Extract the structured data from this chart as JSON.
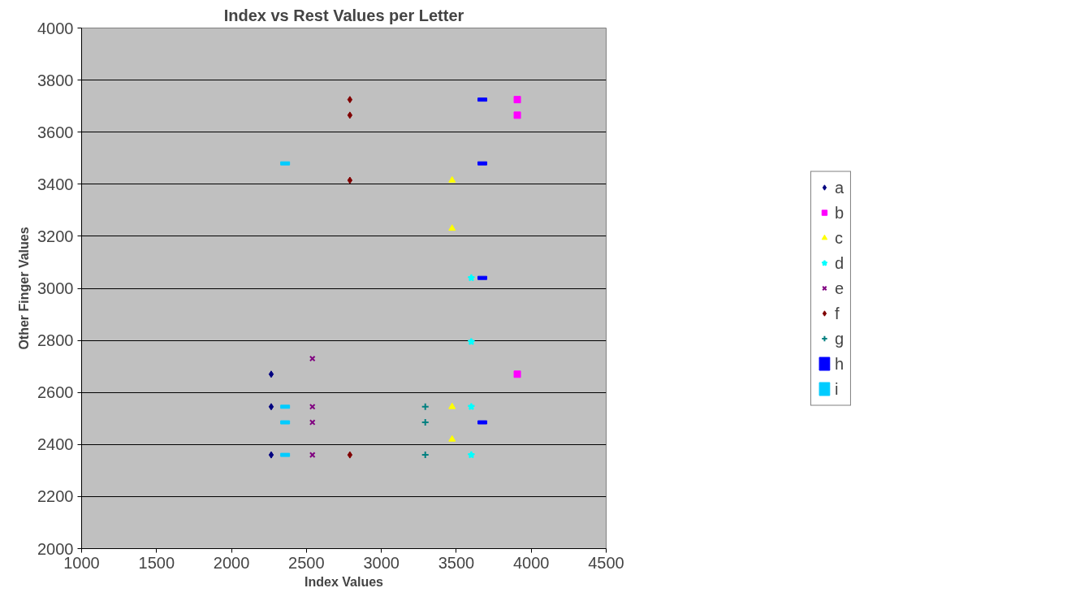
{
  "chart_data": {
    "type": "scatter",
    "title": "Index vs Rest Values per Letter",
    "xlabel": "Index Values",
    "ylabel": "Other Finger Values",
    "xlim": [
      1000,
      4500
    ],
    "xticks": [
      1000,
      1500,
      2000,
      2500,
      3000,
      3500,
      4000,
      4500
    ],
    "ylim": [
      2000,
      4000
    ],
    "yticks": [
      2000,
      2200,
      2400,
      2600,
      2800,
      3000,
      3200,
      3400,
      3600,
      3800,
      4000
    ],
    "grid": "y",
    "legend": "right",
    "series": [
      {
        "name": "a",
        "color": "#000080",
        "marker": "diamond",
        "x": [
          2265,
          2265,
          2265
        ],
        "values": [
          2670,
          2545,
          2360
        ]
      },
      {
        "name": "b",
        "color": "#ff00ff",
        "marker": "square",
        "x": [
          3907,
          3907,
          3907
        ],
        "values": [
          3725,
          3665,
          2670
        ]
      },
      {
        "name": "c",
        "color": "#ffff00",
        "marker": "triangle",
        "x": [
          3472,
          3472,
          3472,
          3472
        ],
        "values": [
          3415,
          3230,
          2545,
          2420
        ]
      },
      {
        "name": "d",
        "color": "#00ffff",
        "marker": "star",
        "x": [
          3600,
          3600,
          3600,
          3600
        ],
        "values": [
          3040,
          2795,
          2545,
          2360
        ]
      },
      {
        "name": "e",
        "color": "#800080",
        "marker": "x",
        "x": [
          2540,
          2540,
          2540,
          2540
        ],
        "values": [
          2730,
          2545,
          2485,
          2360
        ]
      },
      {
        "name": "f",
        "color": "#800000",
        "marker": "diamond",
        "x": [
          2790,
          2790,
          2790,
          2790
        ],
        "values": [
          3725,
          3665,
          3415,
          2360
        ]
      },
      {
        "name": "g",
        "color": "#008080",
        "marker": "cross",
        "x": [
          3293,
          3293,
          3293
        ],
        "values": [
          2545,
          2485,
          2360
        ]
      },
      {
        "name": "h",
        "color": "#0000ff",
        "x": [
          3674,
          3674,
          3674,
          3674
        ],
        "values": [
          3725,
          3480,
          3040,
          2485
        ]
      },
      {
        "name": "i",
        "color": "#00ccff",
        "x": [
          2358,
          2358,
          2358,
          2358
        ],
        "values": [
          3480,
          2545,
          2485,
          2360
        ]
      }
    ]
  }
}
